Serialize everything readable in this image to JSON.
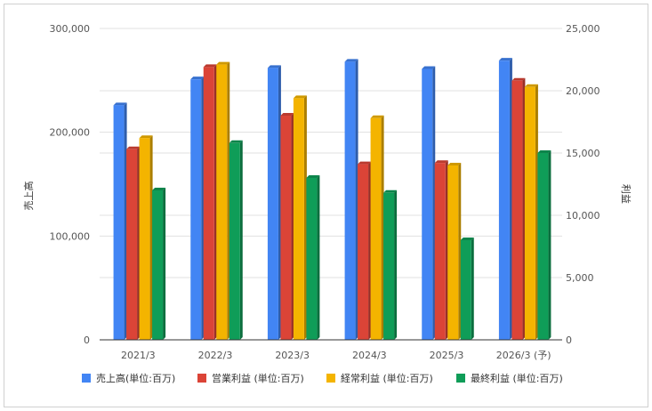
{
  "chart_data": {
    "type": "bar",
    "categories": [
      "2021/3",
      "2022/3",
      "2023/3",
      "2024/3",
      "2025/3",
      "2026/3 (予)"
    ],
    "series": [
      {
        "name": "売上高(単位:百万)",
        "axis": "left",
        "color": "#4285f4",
        "values": [
          226000,
          251000,
          262000,
          268000,
          261000,
          269000
        ]
      },
      {
        "name": "営業利益 (単位:百万)",
        "axis": "right",
        "color": "#db4437",
        "values": [
          15300,
          21900,
          18000,
          14100,
          14200,
          20800
        ]
      },
      {
        "name": "経常利益 (単位:百万)",
        "axis": "right",
        "color": "#f4b400",
        "values": [
          16200,
          22100,
          19400,
          17800,
          14000,
          20300
        ]
      },
      {
        "name": "最終利益 (単位:百万)",
        "axis": "right",
        "color": "#0f9d58",
        "values": [
          12000,
          15800,
          13000,
          11800,
          8000,
          15000
        ]
      }
    ],
    "ylabel": "売上高",
    "y2label": "利益",
    "ylim": [
      0,
      300000
    ],
    "y2lim": [
      0,
      25000
    ],
    "yticks": [
      "0",
      "100,000",
      "200,000",
      "300,000"
    ],
    "y2ticks": [
      "0",
      "5,000",
      "10,000",
      "15,000",
      "20,000",
      "25,000"
    ],
    "grid": true,
    "legend": "bottom"
  }
}
